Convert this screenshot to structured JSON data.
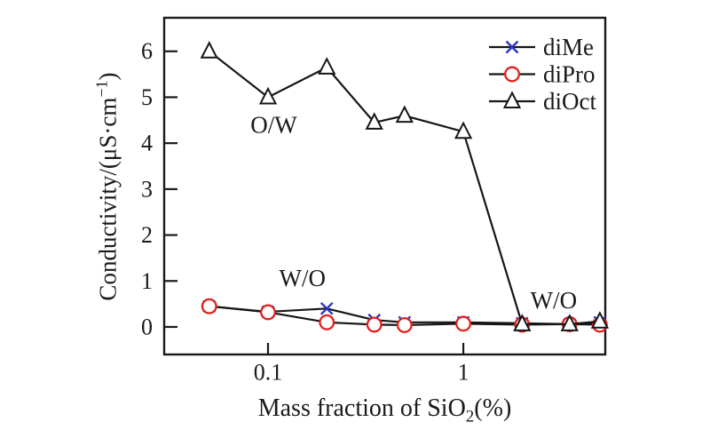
{
  "figure": {
    "background": "#ffffff",
    "frame_color": "#1a1a1a"
  },
  "chart_data": {
    "type": "line",
    "title": "",
    "xlabel_main": "Mass fraction of SiO",
    "xlabel_sub": "2",
    "xlabel_suffix": "(%)",
    "ylabel_main": "Conductivity/(μS·cm",
    "ylabel_sup": "−1",
    "ylabel_suffix": ")",
    "x_scale": "log",
    "xlim": [
      0.0294,
      5.33
    ],
    "ylim": [
      -0.6,
      6.73
    ],
    "grid": false,
    "legend_position": "top-right",
    "x_ticks": [
      {
        "value": 0.1,
        "label": "0.1"
      },
      {
        "value": 1,
        "label": "1"
      }
    ],
    "y_ticks": [
      {
        "value": 0,
        "label": "0"
      },
      {
        "value": 1,
        "label": "1"
      },
      {
        "value": 2,
        "label": "2"
      },
      {
        "value": 3,
        "label": "3"
      },
      {
        "value": 4,
        "label": "4"
      },
      {
        "value": 5,
        "label": "5"
      },
      {
        "value": 6,
        "label": "6"
      }
    ],
    "x": [
      0.05,
      0.1,
      0.2,
      0.35,
      0.5,
      1,
      2,
      3.5,
      5
    ],
    "series": [
      {
        "name": "diMe",
        "marker": "cross",
        "marker_color": "#2b35c4",
        "line_color": "#161616",
        "values": [
          0.45,
          0.33,
          0.4,
          0.15,
          0.1,
          0.1,
          0.08,
          0.06,
          0.1
        ]
      },
      {
        "name": "diPro",
        "marker": "circle",
        "marker_color": "#e0211e",
        "line_color": "#161616",
        "values": [
          0.45,
          0.32,
          0.1,
          0.05,
          0.04,
          0.07,
          0.05,
          0.06,
          0.05
        ]
      },
      {
        "name": "diOct",
        "marker": "triangle",
        "marker_color": "#161616",
        "line_color": "#161616",
        "values": [
          6.0,
          5.0,
          5.65,
          4.45,
          4.6,
          4.25,
          0.06,
          0.06,
          0.12
        ]
      }
    ],
    "annotations": [
      {
        "text": "O/W",
        "x": 0.107,
        "y": 4.4
      },
      {
        "text": "W/O",
        "x": 0.15,
        "y": 1.06
      },
      {
        "text": "W/O",
        "x": 2.9,
        "y": 0.58
      }
    ]
  }
}
